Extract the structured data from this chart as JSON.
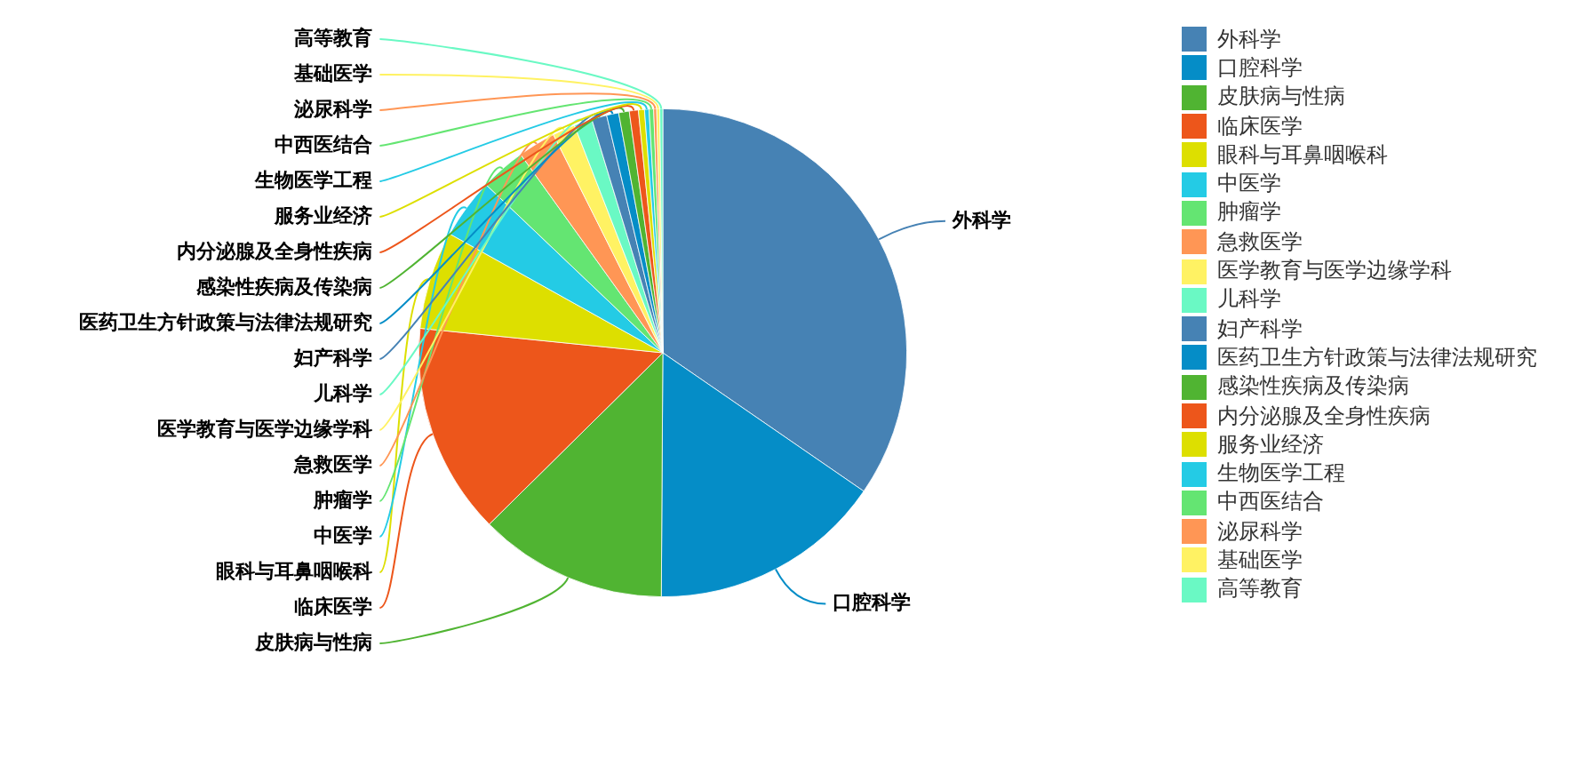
{
  "chart_data": {
    "type": "pie",
    "categories": [
      "外科学",
      "口腔科学",
      "皮肤病与性病",
      "临床医学",
      "眼科与耳鼻咽喉科",
      "中医学",
      "肿瘤学",
      "急救医学",
      "医学教育与医学边缘学科",
      "儿科学",
      "妇产科学",
      "医药卫生方针政策与法律法规研究",
      "感染性疾病及传染病",
      "内分泌腺及全身性疾病",
      "服务业经济",
      "生物医学工程",
      "中西医结合",
      "泌尿科学",
      "基础医学",
      "高等教育"
    ],
    "values": [
      34.6,
      15.5,
      12.5,
      14,
      6.5,
      4,
      3,
      2.5,
      1.5,
      1.2,
      1,
      0.8,
      0.7,
      0.6,
      0.4,
      0.3,
      0.3,
      0.2,
      0.2,
      0.2
    ],
    "colors": [
      "#4682b4",
      "#058dc7",
      "#50b432",
      "#ed561b",
      "#dddf00",
      "#24cbe5",
      "#64e572",
      "#ff9655",
      "#fff263",
      "#6af9c4",
      "#4682b4",
      "#058dc7",
      "#50b432",
      "#ed561b",
      "#dddf00",
      "#24cbe5",
      "#64e572",
      "#ff9655",
      "#fff263",
      "#6af9c4"
    ],
    "legend": "top right"
  }
}
